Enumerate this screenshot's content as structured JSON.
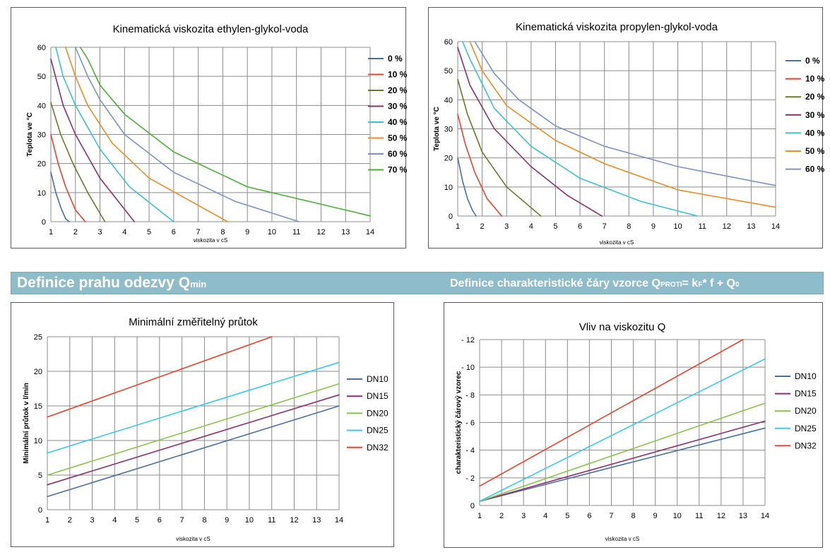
{
  "colors": {
    "grid": "#8c8c8c",
    "axis": "#8c8c8c",
    "band_bg": "#8fbccb",
    "band_text": "#ffffff"
  },
  "section_band": {
    "left_main": "Definice prahu odezvy Q",
    "left_sub": "min",
    "right_prefix": "Definice charakteristické čáry vzorce Q",
    "right_sub1": "PROTI",
    "right_mid": "= k",
    "right_sub2": "F",
    "right_mid2": "* f + Q",
    "right_sub3": "0"
  },
  "chart_data": [
    {
      "id": "ethylen",
      "type": "line",
      "title": "Kinematická viskozita ethylen-glykol-voda",
      "xlabel": "viskozita v cS",
      "ylabel": "Teplota ve °C",
      "xlim": [
        1,
        14
      ],
      "ylim": [
        0,
        60
      ],
      "xticks": [
        1,
        2,
        3,
        4,
        5,
        6,
        7,
        8,
        9,
        10,
        11,
        12,
        13,
        14
      ],
      "yticks": [
        0,
        10,
        20,
        30,
        40,
        50,
        60
      ],
      "legend_bold": true,
      "series": [
        {
          "name": "0 %",
          "color": "#4a6fa5",
          "x": [
            1.0,
            1.2,
            1.4,
            1.6,
            1.75
          ],
          "y": [
            17,
            10,
            5,
            1,
            0
          ]
        },
        {
          "name": "10 %",
          "color": "#e8432d",
          "x": [
            1.0,
            1.3,
            1.6,
            2.0,
            2.4
          ],
          "y": [
            30,
            20,
            12,
            4,
            0
          ]
        },
        {
          "name": "20 %",
          "color": "#6b7a2a",
          "x": [
            1.0,
            1.4,
            1.9,
            2.5,
            3.2
          ],
          "y": [
            41,
            30,
            20,
            10,
            0
          ]
        },
        {
          "name": "30 %",
          "color": "#8b2f6f",
          "x": [
            1.0,
            1.5,
            2.0,
            3.0,
            4.4
          ],
          "y": [
            56,
            40,
            30,
            15,
            0
          ]
        },
        {
          "name": "40 %",
          "color": "#3cc0d0",
          "x": [
            1.2,
            1.5,
            2.0,
            3.0,
            4.2,
            6.0
          ],
          "y": [
            60,
            50,
            40,
            25,
            12,
            0
          ]
        },
        {
          "name": "50 %",
          "color": "#f08c25",
          "x": [
            1.6,
            2.0,
            2.5,
            3.5,
            5.0,
            8.2
          ],
          "y": [
            60,
            50,
            40,
            27,
            15,
            0
          ]
        },
        {
          "name": "60 %",
          "color": "#7b93c8",
          "x": [
            2.0,
            2.5,
            3.0,
            4.0,
            6.0,
            8.5,
            11.1
          ],
          "y": [
            60,
            50,
            42,
            30,
            17,
            7,
            0
          ]
        },
        {
          "name": "70 %",
          "color": "#4caf3a",
          "x": [
            2.2,
            2.5,
            3.0,
            4.0,
            6.0,
            9.0,
            12.5,
            14.0
          ],
          "y": [
            60,
            56,
            47,
            37,
            24,
            12,
            5,
            2
          ]
        }
      ]
    },
    {
      "id": "propylen",
      "type": "line",
      "title": "Kinematická viskozita propylen-glykol-voda",
      "xlabel": "viskozita v cS",
      "ylabel": "Teplota ve °C",
      "xlim": [
        1,
        14
      ],
      "ylim": [
        0,
        60
      ],
      "xticks": [
        1,
        2,
        3,
        4,
        5,
        6,
        7,
        8,
        9,
        10,
        11,
        12,
        13,
        14
      ],
      "yticks": [
        0,
        10,
        20,
        30,
        40,
        50,
        60
      ],
      "legend_bold": true,
      "series": [
        {
          "name": "0 %",
          "color": "#4a6fa5",
          "x": [
            1.0,
            1.2,
            1.4,
            1.6,
            1.75
          ],
          "y": [
            20,
            12,
            6,
            2,
            0
          ]
        },
        {
          "name": "10 %",
          "color": "#e8432d",
          "x": [
            1.0,
            1.3,
            1.7,
            2.2,
            2.8
          ],
          "y": [
            35,
            25,
            15,
            6,
            0
          ]
        },
        {
          "name": "20 %",
          "color": "#6b7a2a",
          "x": [
            1.0,
            1.4,
            2.0,
            3.0,
            4.4
          ],
          "y": [
            47,
            35,
            22,
            10,
            0
          ]
        },
        {
          "name": "30 %",
          "color": "#8b2f6f",
          "x": [
            1.0,
            1.5,
            2.5,
            4.0,
            5.5,
            6.9
          ],
          "y": [
            58,
            45,
            30,
            17,
            7,
            0
          ]
        },
        {
          "name": "40 %",
          "color": "#3cc0d0",
          "x": [
            1.2,
            1.5,
            2.5,
            4.0,
            6.0,
            8.5,
            10.8
          ],
          "y": [
            60,
            54,
            37,
            24,
            13,
            5,
            0
          ]
        },
        {
          "name": "50 %",
          "color": "#f08c25",
          "x": [
            1.5,
            2.0,
            3.0,
            5.0,
            7.0,
            10.0,
            14.0
          ],
          "y": [
            60,
            50,
            38,
            26,
            18,
            9,
            3
          ]
        },
        {
          "name": "60 %",
          "color": "#7b93c8",
          "x": [
            1.7,
            2.5,
            3.5,
            5.0,
            7.0,
            10.0,
            14.0
          ],
          "y": [
            60,
            49,
            40,
            31,
            24,
            17,
            10.5
          ]
        }
      ]
    },
    {
      "id": "min-prutok",
      "type": "line",
      "title": "Minimální změřitelný průtok",
      "xlabel": "viskozita v cS",
      "ylabel": "Minimální průtok v l/min",
      "xlim": [
        1,
        14
      ],
      "ylim": [
        0,
        25
      ],
      "xticks": [
        1,
        2,
        3,
        4,
        5,
        6,
        7,
        8,
        9,
        10,
        11,
        12,
        13,
        14
      ],
      "yticks": [
        0,
        5,
        10,
        15,
        20,
        25
      ],
      "legend_bold": false,
      "series": [
        {
          "name": "DN10",
          "color": "#4a6fa5",
          "x": [
            1,
            14
          ],
          "y": [
            1.9,
            15.0
          ]
        },
        {
          "name": "DN15",
          "color": "#8b2f6f",
          "x": [
            1,
            14
          ],
          "y": [
            3.6,
            16.6
          ]
        },
        {
          "name": "DN20",
          "color": "#8bc34a",
          "x": [
            1,
            14
          ],
          "y": [
            5.0,
            18.2
          ]
        },
        {
          "name": "DN25",
          "color": "#3cc8e8",
          "x": [
            1,
            14
          ],
          "y": [
            8.2,
            21.3
          ]
        },
        {
          "name": "DN32",
          "color": "#e8432d",
          "x": [
            1,
            11
          ],
          "y": [
            13.4,
            25.0
          ]
        }
      ]
    },
    {
      "id": "vliv-q",
      "type": "line",
      "title": "Vliv na viskozitu Q",
      "xlabel": "viskozita v cS",
      "ylabel": "charakteristický čárový vzorec",
      "xlim": [
        1,
        14
      ],
      "ylim": [
        0,
        12
      ],
      "xticks": [
        1,
        2,
        3,
        4,
        5,
        6,
        7,
        8,
        9,
        10,
        11,
        12,
        13,
        14
      ],
      "yticks": [
        0,
        2,
        4,
        6,
        8,
        10,
        12
      ],
      "ytick_labels": [
        "0",
        "- 2",
        "- 4",
        "- 6",
        "- 8",
        "- 10",
        "- 12"
      ],
      "legend_bold": false,
      "series": [
        {
          "name": "DN10",
          "color": "#4a6fa5",
          "x": [
            1,
            14
          ],
          "y": [
            0.3,
            5.6
          ]
        },
        {
          "name": "DN15",
          "color": "#8b2f6f",
          "x": [
            1,
            14
          ],
          "y": [
            0.3,
            6.1
          ]
        },
        {
          "name": "DN20",
          "color": "#8bc34a",
          "x": [
            1,
            14
          ],
          "y": [
            0.3,
            7.4
          ]
        },
        {
          "name": "DN25",
          "color": "#3cc8e8",
          "x": [
            1,
            14
          ],
          "y": [
            0.3,
            10.6
          ]
        },
        {
          "name": "DN32",
          "color": "#e8432d",
          "x": [
            1,
            13
          ],
          "y": [
            1.4,
            12.0
          ]
        }
      ]
    }
  ]
}
